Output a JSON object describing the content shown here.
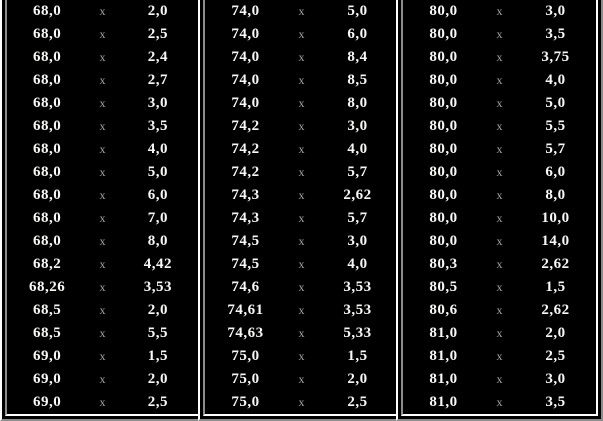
{
  "separator": "x",
  "colors": {
    "background": "#000000",
    "text": "#f8f8f6",
    "separator_text": "#a8a8a8",
    "border_light": "#ffffff",
    "border_dark": "#8c8c8c"
  },
  "panels": [
    {
      "name": "sizes-68-69",
      "rows": [
        [
          "68,0",
          "2,0"
        ],
        [
          "68,0",
          "2,5"
        ],
        [
          "68,0",
          "2,4"
        ],
        [
          "68,0",
          "2,7"
        ],
        [
          "68,0",
          "3,0"
        ],
        [
          "68,0",
          "3,5"
        ],
        [
          "68,0",
          "4,0"
        ],
        [
          "68,0",
          "5,0"
        ],
        [
          "68,0",
          "6,0"
        ],
        [
          "68,0",
          "7,0"
        ],
        [
          "68,0",
          "8,0"
        ],
        [
          "68,2",
          "4,42"
        ],
        [
          "68,26",
          "3,53"
        ],
        [
          "68,5",
          "2,0"
        ],
        [
          "68,5",
          "5,5"
        ],
        [
          "69,0",
          "1,5"
        ],
        [
          "69,0",
          "2,0"
        ],
        [
          "69,0",
          "2,5"
        ]
      ]
    },
    {
      "name": "sizes-74-75",
      "rows": [
        [
          "74,0",
          "5,0"
        ],
        [
          "74,0",
          "6,0"
        ],
        [
          "74,0",
          "8,4"
        ],
        [
          "74,0",
          "8,5"
        ],
        [
          "74,0",
          "8,0"
        ],
        [
          "74,2",
          "3,0"
        ],
        [
          "74,2",
          "4,0"
        ],
        [
          "74,2",
          "5,7"
        ],
        [
          "74,3",
          "2,62"
        ],
        [
          "74,3",
          "5,7"
        ],
        [
          "74,5",
          "3,0"
        ],
        [
          "74,5",
          "4,0"
        ],
        [
          "74,6",
          "3,53"
        ],
        [
          "74,61",
          "3,53"
        ],
        [
          "74,63",
          "5,33"
        ],
        [
          "75,0",
          "1,5"
        ],
        [
          "75,0",
          "2,0"
        ],
        [
          "75,0",
          "2,5"
        ]
      ]
    },
    {
      "name": "sizes-80-81",
      "rows": [
        [
          "80,0",
          "3,0"
        ],
        [
          "80,0",
          "3,5"
        ],
        [
          "80,0",
          "3,75"
        ],
        [
          "80,0",
          "4,0"
        ],
        [
          "80,0",
          "5,0"
        ],
        [
          "80,0",
          "5,5"
        ],
        [
          "80,0",
          "5,7"
        ],
        [
          "80,0",
          "6,0"
        ],
        [
          "80,0",
          "8,0"
        ],
        [
          "80,0",
          "10,0"
        ],
        [
          "80,0",
          "14,0"
        ],
        [
          "80,3",
          "2,62"
        ],
        [
          "80,5",
          "1,5"
        ],
        [
          "80,6",
          "2,62"
        ],
        [
          "81,0",
          "2,0"
        ],
        [
          "81,0",
          "2,5"
        ],
        [
          "81,0",
          "3,0"
        ],
        [
          "81,0",
          "3,5"
        ]
      ]
    }
  ]
}
